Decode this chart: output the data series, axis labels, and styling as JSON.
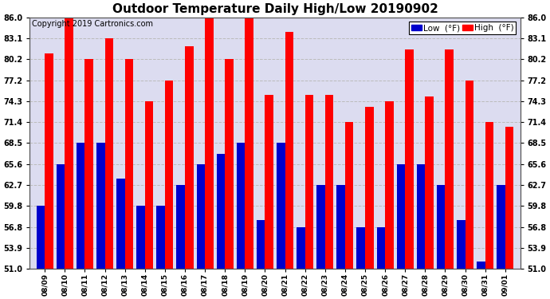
{
  "title": "Outdoor Temperature Daily High/Low 20190902",
  "copyright": "Copyright 2019 Cartronics.com",
  "categories": [
    "08/09",
    "08/10",
    "08/11",
    "08/12",
    "08/13",
    "08/14",
    "08/15",
    "08/16",
    "08/17",
    "08/18",
    "08/19",
    "08/20",
    "08/21",
    "08/22",
    "08/23",
    "08/24",
    "08/25",
    "08/26",
    "08/27",
    "08/28",
    "08/29",
    "08/30",
    "08/31",
    "09/01"
  ],
  "highs": [
    81.0,
    86.0,
    80.2,
    83.1,
    80.2,
    74.3,
    77.2,
    82.0,
    86.0,
    80.2,
    86.0,
    75.2,
    84.0,
    75.2,
    75.2,
    71.4,
    73.5,
    74.3,
    81.5,
    75.0,
    81.5,
    77.2,
    71.4,
    70.8
  ],
  "lows": [
    59.8,
    65.6,
    68.5,
    68.5,
    63.5,
    59.8,
    59.8,
    62.7,
    65.6,
    67.0,
    68.5,
    57.8,
    68.5,
    56.8,
    62.7,
    62.7,
    56.8,
    56.8,
    65.6,
    65.6,
    62.7,
    57.8,
    52.0,
    62.7
  ],
  "ylim": [
    51.0,
    86.0
  ],
  "yticks": [
    51.0,
    53.9,
    56.8,
    59.8,
    62.7,
    65.6,
    68.5,
    71.4,
    74.3,
    77.2,
    80.2,
    83.1,
    86.0
  ],
  "high_color": "#ff0000",
  "low_color": "#0000cc",
  "bg_color": "#ffffff",
  "plot_bg_color": "#dcdcf0",
  "title_fontsize": 11,
  "copyright_fontsize": 7,
  "bar_width": 0.42,
  "grid_color": "#bbbbbb",
  "legend_low_label": "Low  (°F)",
  "legend_high_label": "High  (°F)"
}
